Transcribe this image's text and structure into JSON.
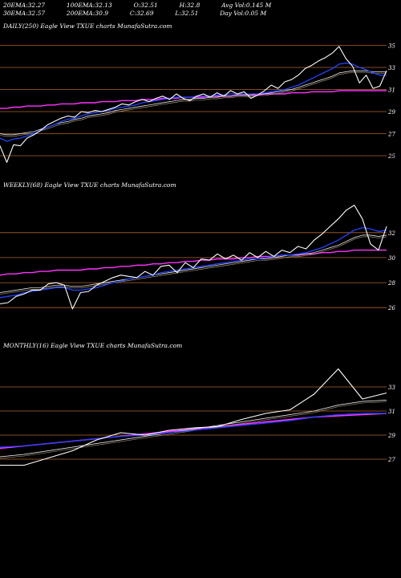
{
  "header": {
    "row1": [
      {
        "label": "20EMA:",
        "value": "32.27"
      },
      {
        "label": "100EMA:",
        "value": "32.13"
      },
      {
        "label": "O:",
        "value": "32.51"
      },
      {
        "label": "H:",
        "value": "32.8"
      },
      {
        "label": "Avg Vol:",
        "value": "0.145 M"
      }
    ],
    "row2": [
      {
        "label": "30EMA:",
        "value": "32.57"
      },
      {
        "label": "200EMA:",
        "value": "30.9"
      },
      {
        "label": "C:",
        "value": "32.69"
      },
      {
        "label": "L:",
        "value": "32.51"
      },
      {
        "label": "Day Vol:",
        "value": "0.05 M"
      }
    ]
  },
  "colors": {
    "price": "#ffffff",
    "ema_short": "#2244ff",
    "ema_mid": "#ffffff",
    "ema_long": "#ff33ff",
    "grid": "#b0642a",
    "background": "#000000"
  },
  "chart_data": [
    {
      "type": "line",
      "title": "DAILY(250) Eagle  View  TXUE charts MunafaSutra.com",
      "ylim": [
        24.2,
        36.2
      ],
      "yticks": [
        25,
        27,
        29,
        31,
        33,
        35
      ],
      "grid": true,
      "series": [
        {
          "role": "price",
          "values": [
            25.9,
            24.4,
            26.0,
            25.9,
            26.6,
            26.9,
            27.3,
            27.8,
            28.1,
            28.4,
            28.6,
            28.5,
            29.0,
            28.9,
            29.1,
            29.0,
            29.2,
            29.4,
            29.7,
            29.6,
            29.9,
            30.1,
            29.9,
            30.2,
            30.4,
            30.1,
            30.6,
            30.2,
            30.0,
            30.4,
            30.6,
            30.3,
            30.7,
            30.4,
            30.9,
            30.6,
            30.8,
            30.2,
            30.5,
            30.9,
            31.4,
            31.1,
            31.7,
            31.9,
            32.3,
            32.9,
            33.2,
            33.6,
            33.9,
            34.3,
            34.9,
            33.8,
            33.1,
            31.6,
            32.3,
            31.1,
            31.3,
            32.7
          ]
        },
        {
          "role": "ema_short",
          "values": [
            26.6,
            26.3,
            26.5,
            26.6,
            26.8,
            27.0,
            27.3,
            27.6,
            27.8,
            28.1,
            28.3,
            28.4,
            28.6,
            28.8,
            28.9,
            29.0,
            29.1,
            29.3,
            29.4,
            29.5,
            29.6,
            29.8,
            29.9,
            30.0,
            30.1,
            30.2,
            30.3,
            30.3,
            30.3,
            30.4,
            30.4,
            30.4,
            30.5,
            30.5,
            30.6,
            30.6,
            30.6,
            30.6,
            30.6,
            30.7,
            30.8,
            30.9,
            31.0,
            31.2,
            31.4,
            31.7,
            32.0,
            32.3,
            32.6,
            32.9,
            33.3,
            33.4,
            33.3,
            33.0,
            32.8,
            32.5,
            32.3,
            32.3
          ]
        },
        {
          "role": "ema_mid",
          "values": [
            27.0,
            26.9,
            26.9,
            27.0,
            27.1,
            27.2,
            27.4,
            27.6,
            27.8,
            28.0,
            28.1,
            28.3,
            28.4,
            28.6,
            28.7,
            28.8,
            28.9,
            29.1,
            29.2,
            29.3,
            29.4,
            29.5,
            29.6,
            29.7,
            29.8,
            29.9,
            30.0,
            30.1,
            30.1,
            30.2,
            30.2,
            30.3,
            30.3,
            30.4,
            30.4,
            30.5,
            30.5,
            30.5,
            30.6,
            30.6,
            30.7,
            30.8,
            30.9,
            31.0,
            31.2,
            31.4,
            31.6,
            31.8,
            32.0,
            32.2,
            32.5,
            32.6,
            32.7,
            32.7,
            32.7,
            32.6,
            32.6,
            32.6
          ]
        },
        {
          "role": "ema_long",
          "values": [
            29.3,
            29.3,
            29.4,
            29.4,
            29.5,
            29.5,
            29.5,
            29.6,
            29.6,
            29.7,
            29.7,
            29.7,
            29.8,
            29.8,
            29.8,
            29.9,
            29.9,
            29.9,
            30.0,
            30.0,
            30.0,
            30.1,
            30.1,
            30.1,
            30.2,
            30.2,
            30.2,
            30.3,
            30.3,
            30.3,
            30.3,
            30.4,
            30.4,
            30.4,
            30.4,
            30.5,
            30.5,
            30.5,
            30.5,
            30.6,
            30.6,
            30.6,
            30.6,
            30.7,
            30.7,
            30.7,
            30.8,
            30.8,
            30.8,
            30.8,
            30.9,
            30.9,
            30.9,
            30.9,
            30.9,
            30.9,
            30.9,
            30.9
          ]
        }
      ]
    },
    {
      "type": "line",
      "title": "WEEKLY(68) Eagle  View  TXUE charts MunafaSutra.com",
      "ylim": [
        24.6,
        35.2
      ],
      "yticks": [
        26,
        28,
        30,
        32
      ],
      "grid": true,
      "series": [
        {
          "role": "price",
          "values": [
            26.3,
            26.4,
            26.9,
            27.1,
            27.4,
            27.4,
            27.9,
            28.0,
            27.8,
            25.9,
            27.2,
            27.3,
            27.8,
            28.1,
            28.4,
            28.6,
            28.5,
            28.4,
            28.9,
            28.6,
            29.3,
            29.4,
            28.8,
            29.6,
            29.2,
            29.9,
            29.8,
            30.3,
            29.9,
            30.2,
            29.8,
            30.4,
            30.0,
            30.5,
            30.1,
            30.6,
            30.4,
            30.9,
            30.7,
            31.4,
            31.9,
            32.5,
            33.1,
            33.8,
            34.2,
            33.1,
            31.1,
            30.6,
            32.5
          ]
        },
        {
          "role": "ema_short",
          "values": [
            26.8,
            26.9,
            27.0,
            27.2,
            27.3,
            27.4,
            27.5,
            27.6,
            27.6,
            27.4,
            27.4,
            27.5,
            27.6,
            27.8,
            28.0,
            28.1,
            28.3,
            28.4,
            28.5,
            28.6,
            28.8,
            28.9,
            29.0,
            29.1,
            29.2,
            29.3,
            29.4,
            29.5,
            29.6,
            29.7,
            29.8,
            29.9,
            29.9,
            30.0,
            30.1,
            30.2,
            30.2,
            30.3,
            30.4,
            30.6,
            30.8,
            31.1,
            31.4,
            31.8,
            32.2,
            32.4,
            32.3,
            32.1,
            32.2
          ]
        },
        {
          "role": "ema_mid",
          "values": [
            27.2,
            27.3,
            27.4,
            27.5,
            27.6,
            27.6,
            27.7,
            27.8,
            27.8,
            27.7,
            27.7,
            27.8,
            27.9,
            28.0,
            28.1,
            28.2,
            28.3,
            28.4,
            28.5,
            28.6,
            28.7,
            28.8,
            28.9,
            29.0,
            29.1,
            29.2,
            29.3,
            29.4,
            29.5,
            29.6,
            29.7,
            29.8,
            29.9,
            29.9,
            30.0,
            30.1,
            30.2,
            30.2,
            30.3,
            30.4,
            30.6,
            30.8,
            31.0,
            31.3,
            31.6,
            31.8,
            31.8,
            31.7,
            31.8
          ]
        },
        {
          "role": "ema_long",
          "values": [
            28.6,
            28.7,
            28.7,
            28.8,
            28.8,
            28.9,
            28.9,
            29.0,
            29.0,
            29.0,
            29.0,
            29.1,
            29.1,
            29.2,
            29.2,
            29.3,
            29.3,
            29.4,
            29.4,
            29.5,
            29.5,
            29.6,
            29.6,
            29.7,
            29.7,
            29.8,
            29.8,
            29.9,
            29.9,
            29.9,
            30.0,
            30.0,
            30.1,
            30.1,
            30.1,
            30.2,
            30.2,
            30.2,
            30.3,
            30.3,
            30.4,
            30.4,
            30.5,
            30.5,
            30.6,
            30.6,
            30.6,
            30.6,
            30.6
          ]
        }
      ]
    },
    {
      "type": "line",
      "title": "MONTHLY(16) Eagle  View  TXUE charts MunafaSutra.com",
      "ylim": [
        24.8,
        35.8
      ],
      "yticks": [
        27,
        29,
        31,
        33
      ],
      "grid": true,
      "series": [
        {
          "role": "price",
          "values": [
            26.5,
            26.5,
            27.1,
            27.7,
            28.6,
            29.2,
            29.0,
            29.4,
            29.6,
            29.7,
            30.3,
            30.8,
            31.1,
            32.4,
            34.5,
            32.0,
            32.5
          ]
        },
        {
          "role": "ema_short",
          "values": [
            28.0,
            28.1,
            28.3,
            28.5,
            28.7,
            28.9,
            29.0,
            29.2,
            29.4,
            29.6,
            29.8,
            30.0,
            30.2,
            30.5,
            30.7,
            30.8,
            30.8
          ]
        },
        {
          "role": "ema_mid",
          "values": [
            27.2,
            27.4,
            27.7,
            28.0,
            28.3,
            28.6,
            28.9,
            29.2,
            29.5,
            29.8,
            30.1,
            30.4,
            30.7,
            31.0,
            31.5,
            31.8,
            31.9
          ]
        },
        {
          "role": "ema_long",
          "values": [
            27.9,
            28.1,
            28.3,
            28.5,
            28.7,
            28.9,
            29.1,
            29.3,
            29.5,
            29.7,
            29.9,
            30.1,
            30.3,
            30.5,
            30.6,
            30.7,
            30.8
          ]
        }
      ]
    }
  ]
}
